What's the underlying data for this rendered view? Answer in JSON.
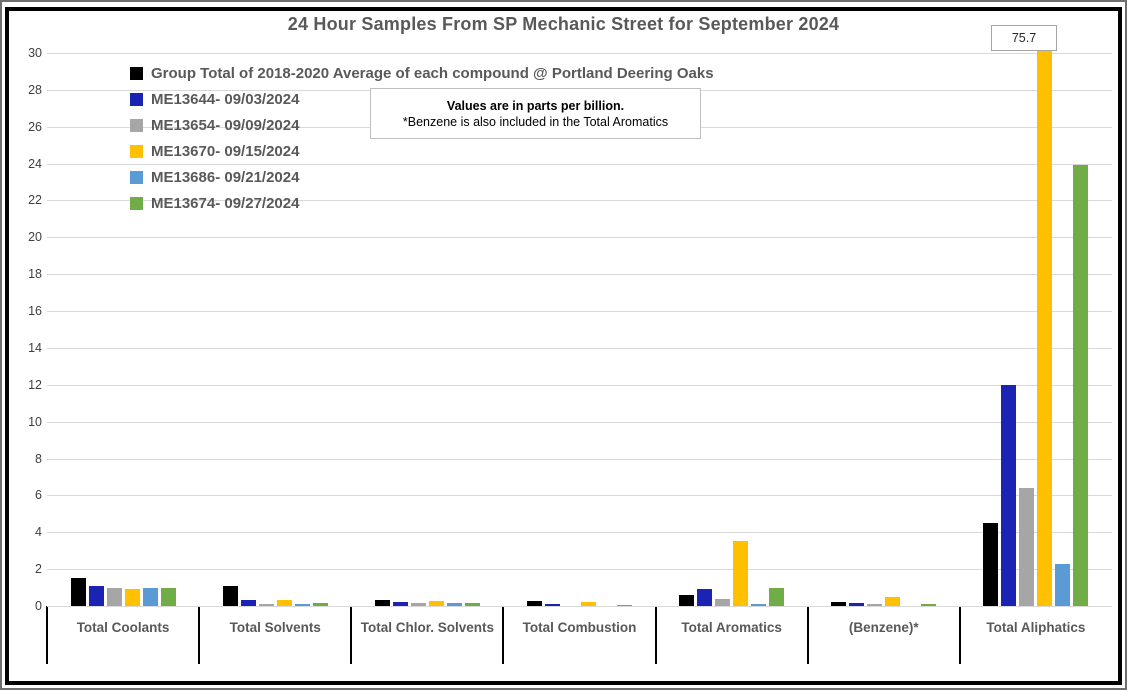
{
  "title": "24 Hour Samples From SP Mechanic Street for September 2024",
  "note": {
    "line1": "Values are in parts per billion.",
    "line2": "*Benzene is also included in the Total Aromatics"
  },
  "callout": {
    "value": "75.7"
  },
  "chart_data": {
    "type": "bar",
    "title": "24 Hour Samples From SP Mechanic Street for September 2024",
    "unit": "parts per billion",
    "categories": [
      "Total Coolants",
      "Total Solvents",
      "Total Chlor. Solvents",
      "Total Combustion",
      "Total Aromatics",
      "(Benzene)*",
      "Total Aliphatics"
    ],
    "series": [
      {
        "name": "Group Total of 2018-2020 Average of each compound @ Portland Deering Oaks",
        "color": "#000000",
        "values": [
          1.5,
          1.1,
          0.35,
          0.25,
          0.6,
          0.2,
          4.5
        ]
      },
      {
        "name": "ME13644- 09/03/2024",
        "color": "#1a23b2",
        "values": [
          1.1,
          0.35,
          0.2,
          0.1,
          0.9,
          0.15,
          12.0
        ]
      },
      {
        "name": "ME13654- 09/09/2024",
        "color": "#a6a6a6",
        "values": [
          0.95,
          0.12,
          0.15,
          0,
          0.38,
          0.1,
          6.4
        ]
      },
      {
        "name": "ME13670- 09/15/2024",
        "color": "#ffc000",
        "values": [
          0.9,
          0.3,
          0.27,
          0.2,
          3.5,
          0.5,
          75.7
        ]
      },
      {
        "name": "ME13686- 09/21/2024",
        "color": "#5b9bd5",
        "values": [
          0.95,
          0.12,
          0.15,
          0,
          0.12,
          0,
          2.3
        ]
      },
      {
        "name": "ME13674- 09/27/2024",
        "color": "#70ad47",
        "values": [
          0.95,
          0.18,
          0.15,
          0.05,
          0.95,
          0.12,
          23.9
        ]
      }
    ],
    "ylim": [
      0,
      30
    ],
    "ytick_step": 2,
    "grid": true,
    "legend_position": "top-left",
    "clipped_bar_label": {
      "series": "ME13670- 09/15/2024",
      "category": "Total Aliphatics",
      "value": "75.7"
    },
    "colors": {
      "gridline": "#d9d9d9",
      "axis_text": "#404040",
      "label_text": "#595959",
      "divider": "#000000"
    }
  }
}
